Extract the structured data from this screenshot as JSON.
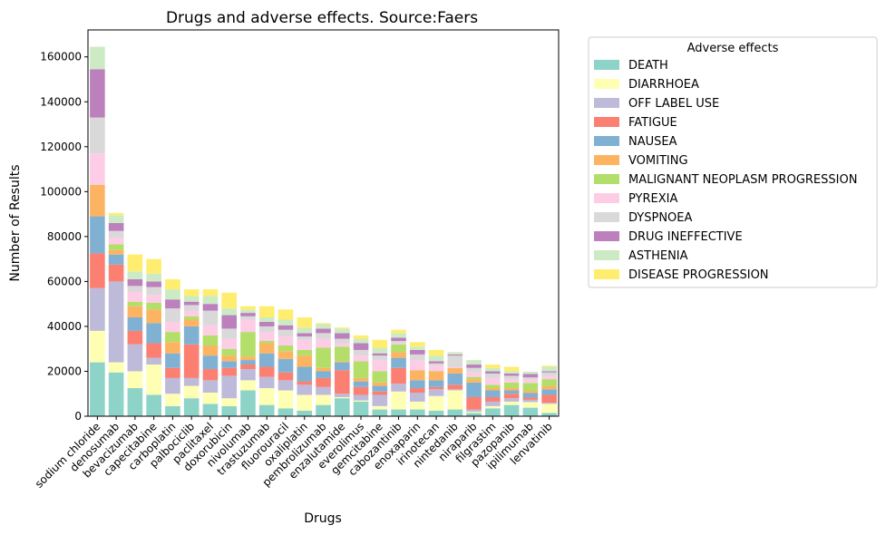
{
  "chart_data": {
    "type": "bar",
    "stacked": true,
    "title": "Drugs and adverse effects. Source:Faers",
    "xlabel": "Drugs",
    "ylabel": "Number of Results",
    "ylim": [
      0,
      172000
    ],
    "yticks": [
      0,
      20000,
      40000,
      60000,
      80000,
      100000,
      120000,
      140000,
      160000
    ],
    "grid": false,
    "legend_title": "Adverse effects",
    "legend_position": "outside-top-right",
    "categories": [
      "sodium chloride",
      "denosumab",
      "bevacizumab",
      "capecitabine",
      "carboplatin",
      "palbociclib",
      "paclitaxel",
      "doxorubicin",
      "nivolumab",
      "trastuzumab",
      "fluorouracil",
      "oxaliplatin",
      "pembrolizumab",
      "enzalutamide",
      "everolimus",
      "gemcitabine",
      "cabozantinib",
      "enoxaparin",
      "irinotecan",
      "nintedanib",
      "niraparib",
      "filgrastim",
      "pazopanib",
      "ipilimumab",
      "lenvatinib"
    ],
    "series": [
      {
        "name": "DEATH",
        "color": "#8dd3c7",
        "values": [
          24000,
          19500,
          12500,
          9500,
          4500,
          8000,
          5500,
          4500,
          11500,
          5000,
          3500,
          2500,
          5000,
          8000,
          6500,
          3000,
          3000,
          3000,
          2500,
          3000,
          1500,
          3500,
          5000,
          3800,
          1500
        ]
      },
      {
        "name": "DIARRHOEA",
        "color": "#ffffb3",
        "values": [
          14000,
          4500,
          7500,
          13500,
          5500,
          5500,
          5000,
          3500,
          4500,
          7500,
          8000,
          7000,
          4500,
          500,
          500,
          1500,
          8000,
          3500,
          6500,
          8500,
          500,
          1000,
          1500,
          2500,
          4000
        ]
      },
      {
        "name": "OFF LABEL USE",
        "color": "#bebada",
        "values": [
          19000,
          36000,
          12000,
          3000,
          7000,
          3500,
          5500,
          10000,
          5000,
          5000,
          4500,
          4500,
          3500,
          1500,
          2500,
          5000,
          3500,
          4000,
          3000,
          500,
          1000,
          2000,
          1500,
          1000,
          500
        ]
      },
      {
        "name": "FATIGUE",
        "color": "#fb8072",
        "values": [
          15500,
          7500,
          6000,
          6500,
          4500,
          15000,
          5000,
          3500,
          2000,
          4500,
          3500,
          1500,
          4000,
          10500,
          3500,
          1500,
          7000,
          2000,
          1000,
          2000,
          5500,
          2000,
          2000,
          1000,
          3500
        ]
      },
      {
        "name": "NAUSEA",
        "color": "#80b1d3",
        "values": [
          16500,
          4500,
          6000,
          9000,
          6500,
          8000,
          6000,
          3000,
          2000,
          6000,
          6000,
          6500,
          3000,
          3500,
          2500,
          2500,
          4500,
          3500,
          3000,
          5000,
          6500,
          3000,
          1500,
          2000,
          2500
        ]
      },
      {
        "name": "VOMITING",
        "color": "#fdb462",
        "values": [
          14000,
          2000,
          5000,
          6000,
          5000,
          3000,
          4500,
          2500,
          1500,
          4500,
          3500,
          5000,
          1500,
          500,
          1500,
          1500,
          2500,
          4500,
          4000,
          2500,
          1500,
          1000,
          1000,
          1000,
          1500
        ]
      },
      {
        "name": "MALIGNANT NEOPLASM PROGRESSION",
        "color": "#b3de69",
        "values": [
          0,
          2500,
          2000,
          3000,
          4500,
          1500,
          4500,
          3000,
          11000,
          1000,
          2500,
          2500,
          9000,
          6500,
          7500,
          5000,
          3500,
          0,
          0,
          0,
          1000,
          1500,
          2500,
          3500,
          3000
        ]
      },
      {
        "name": "PYREXIA",
        "color": "#fccde5",
        "values": [
          14000,
          3000,
          4500,
          3500,
          4500,
          2500,
          4500,
          4500,
          5500,
          4000,
          4000,
          4500,
          4000,
          1500,
          2500,
          5000,
          500,
          4500,
          2500,
          500,
          2000,
          3000,
          1500,
          1500,
          1500
        ]
      },
      {
        "name": "DYSPNOEA",
        "color": "#d9d9d9",
        "values": [
          16000,
          3000,
          2500,
          3500,
          6000,
          2500,
          6500,
          4500,
          1500,
          2500,
          3000,
          1500,
          2500,
          2000,
          2500,
          2000,
          1000,
          2500,
          1000,
          5000,
          2000,
          2000,
          1500,
          1000,
          1500
        ]
      },
      {
        "name": "DRUG INEFFECTIVE",
        "color": "#bc80bd",
        "values": [
          21500,
          3500,
          3000,
          2500,
          4000,
          1500,
          3000,
          6000,
          1500,
          2000,
          2000,
          1500,
          2000,
          2500,
          3000,
          1000,
          1500,
          2000,
          1000,
          500,
          1500,
          1000,
          1000,
          1500,
          500
        ]
      },
      {
        "name": "ASTHENIA",
        "color": "#ccebc5",
        "values": [
          10000,
          3500,
          3500,
          3500,
          4500,
          2500,
          3500,
          3000,
          1500,
          2000,
          2500,
          2500,
          2000,
          2000,
          2000,
          2500,
          2000,
          1500,
          2500,
          1000,
          2000,
          1500,
          1000,
          1000,
          2000
        ]
      },
      {
        "name": "DISEASE PROGRESSION",
        "color": "#ffed6f",
        "values": [
          0,
          1000,
          7500,
          6500,
          4500,
          3000,
          3000,
          7000,
          1500,
          5000,
          4500,
          4500,
          500,
          500,
          1500,
          3500,
          1500,
          2000,
          2500,
          0,
          0,
          1500,
          2000,
          0,
          500
        ]
      }
    ]
  }
}
